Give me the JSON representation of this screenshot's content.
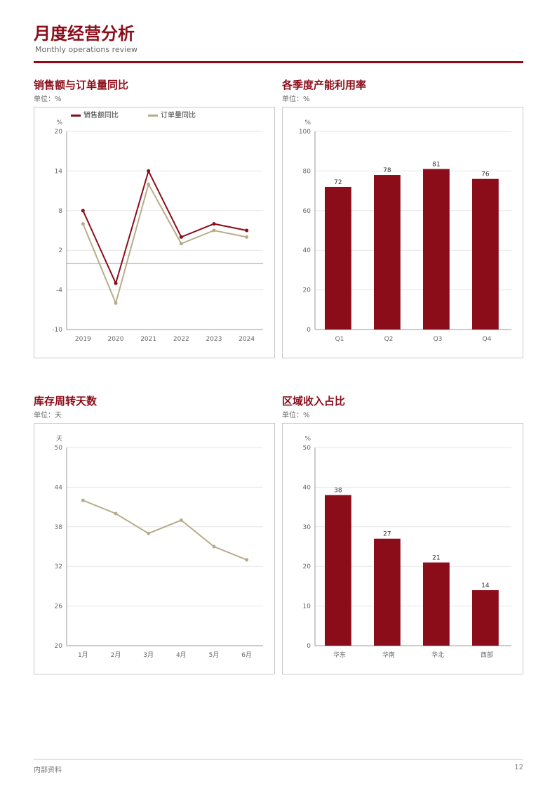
{
  "page": {
    "report_title": "月度经营分析",
    "report_subtitle": "Monthly operations review",
    "footer_left": "内部资料",
    "footer_right": "12",
    "accent": "#8b0d1a",
    "muted": "#b8ad8a"
  },
  "chart_data": [
    {
      "type": "line",
      "title": "销售额与订单量同比",
      "subtitle": "单位：%",
      "xlabel": "",
      "ylabel": "%",
      "categories": [
        "2019",
        "2020",
        "2021",
        "2022",
        "2023",
        "2024"
      ],
      "series": [
        {
          "name": "销售额同比",
          "values": [
            8,
            -3,
            14,
            4,
            6,
            5
          ]
        },
        {
          "name": "订单量同比",
          "values": [
            6,
            -6,
            12,
            3,
            5,
            4
          ]
        }
      ],
      "ylim": [
        -10,
        20
      ],
      "grid": true,
      "legend": "top-left",
      "colors": [
        "#8b0d1a",
        "#b8ad8a"
      ]
    },
    {
      "type": "bar",
      "title": "各季度产能利用率",
      "subtitle": "单位：%",
      "xlabel": "",
      "ylabel": "%",
      "categories": [
        "Q1",
        "Q2",
        "Q3",
        "Q4"
      ],
      "series": [
        {
          "name": "产能利用率",
          "values": [
            72,
            78,
            81,
            76
          ]
        }
      ],
      "ylim": [
        0,
        100
      ],
      "grid": true,
      "legend": "none",
      "colors": [
        "#8b0d1a"
      ]
    },
    {
      "type": "line",
      "title": "库存周转天数",
      "subtitle": "单位：天",
      "xlabel": "",
      "ylabel": "天",
      "categories": [
        "1月",
        "2月",
        "3月",
        "4月",
        "5月",
        "6月"
      ],
      "series": [
        {
          "name": "周转天数",
          "values": [
            42,
            40,
            37,
            39,
            35,
            33
          ]
        }
      ],
      "ylim": [
        20,
        50
      ],
      "grid": true,
      "legend": "none",
      "colors": [
        "#b8ad8a"
      ]
    },
    {
      "type": "bar",
      "title": "区域收入占比",
      "subtitle": "单位：%",
      "xlabel": "",
      "ylabel": "%",
      "categories": [
        "华东",
        "华南",
        "华北",
        "西部"
      ],
      "series": [
        {
          "name": "收入占比",
          "values": [
            38,
            27,
            21,
            14
          ]
        }
      ],
      "ylim": [
        0,
        50
      ],
      "grid": true,
      "legend": "none",
      "colors": [
        "#8b0d1a"
      ]
    }
  ]
}
